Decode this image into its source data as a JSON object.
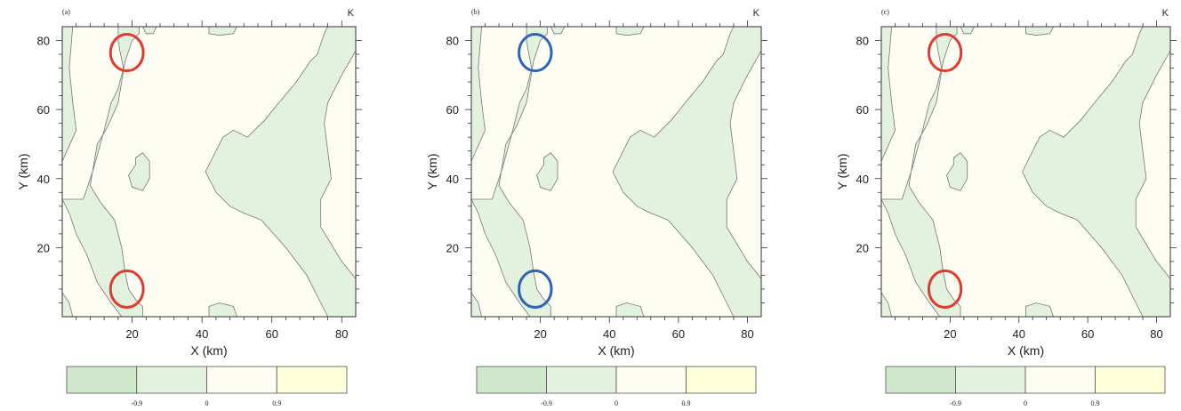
{
  "chart_data": [
    {
      "type": "contour",
      "panel_label": "(a)",
      "unit": "K",
      "xlabel": "X (km)",
      "ylabel": "Y (km)",
      "xlim": [
        0,
        84
      ],
      "ylim": [
        0,
        84
      ],
      "xticks": [
        20,
        40,
        60,
        80
      ],
      "yticks": [
        20,
        40,
        60,
        80
      ],
      "colorbar": {
        "levels": [
          "-0.9",
          "0",
          "0.9"
        ],
        "colors": [
          "#cfe8cc",
          "#e3f2df",
          "#fdfdf3",
          "#fefed8"
        ]
      },
      "background_color": "#fdfdf3",
      "region_color": "#e3f2df",
      "highlights": [
        {
          "cx": 18.5,
          "cy": 76.5,
          "rx": 4.7,
          "ry": 5.3,
          "color": "#e23a2e"
        },
        {
          "cx": 18.5,
          "cy": 8,
          "rx": 4.7,
          "ry": 5.3,
          "color": "#e23a2e"
        }
      ]
    },
    {
      "type": "contour",
      "panel_label": "(b)",
      "unit": "K",
      "xlabel": "X (km)",
      "ylabel": "Y (km)",
      "xlim": [
        0,
        84
      ],
      "ylim": [
        0,
        84
      ],
      "xticks": [
        20,
        40,
        60,
        80
      ],
      "yticks": [
        20,
        40,
        60,
        80
      ],
      "colorbar": {
        "levels": [
          "-0.9",
          "0",
          "0.9"
        ],
        "colors": [
          "#cfe8cc",
          "#e3f2df",
          "#fdfdf3",
          "#fefed8"
        ]
      },
      "background_color": "#fdfdf3",
      "region_color": "#e3f2df",
      "highlights": [
        {
          "cx": 18.5,
          "cy": 76.5,
          "rx": 4.7,
          "ry": 5.3,
          "color": "#2f63b8"
        },
        {
          "cx": 18.5,
          "cy": 8,
          "rx": 4.7,
          "ry": 5.3,
          "color": "#2f63b8"
        }
      ]
    },
    {
      "type": "contour",
      "panel_label": "(c)",
      "unit": "K",
      "xlabel": "X (km)",
      "ylabel": "Y (km)",
      "xlim": [
        0,
        84
      ],
      "ylim": [
        0,
        84
      ],
      "xticks": [
        20,
        40,
        60,
        80
      ],
      "yticks": [
        20,
        40,
        60,
        80
      ],
      "colorbar": {
        "levels": [
          "-0.9",
          "0",
          "0.9"
        ],
        "colors": [
          "#cfe8cc",
          "#e3f2df",
          "#fdfdf3",
          "#fefed8"
        ]
      },
      "background_color": "#fdfdf3",
      "region_color": "#e3f2df",
      "highlights": [
        {
          "cx": 18.5,
          "cy": 76.5,
          "rx": 4.7,
          "ry": 5.3,
          "color": "#e23a2e"
        },
        {
          "cx": 18.5,
          "cy": 8,
          "rx": 4.7,
          "ry": 5.3,
          "color": "#e23a2e"
        }
      ]
    }
  ]
}
